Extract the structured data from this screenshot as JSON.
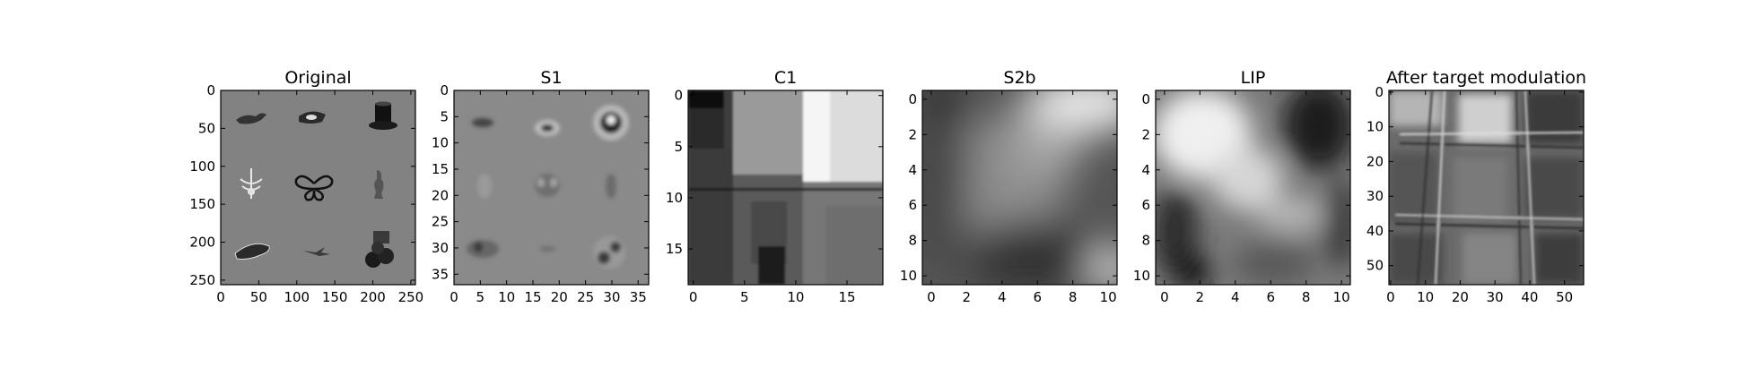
{
  "colors": {
    "background": "#ffffff",
    "axis": "#000000",
    "image_gray": "#808080"
  },
  "chart_data": [
    {
      "type": "heatmap",
      "title": "Original",
      "colormap": "gray",
      "extent": [
        0,
        256,
        256,
        0
      ],
      "xticks": [
        0,
        50,
        100,
        150,
        200,
        250
      ],
      "yticks": [
        0,
        50,
        100,
        150,
        200,
        250
      ],
      "content": "3x3 grid of grayscale object images on gray background"
    },
    {
      "type": "heatmap",
      "title": "S1",
      "colormap": "gray",
      "extent": [
        0,
        37,
        37,
        0
      ],
      "xticks": [
        0,
        5,
        10,
        15,
        20,
        25,
        30,
        35
      ],
      "yticks": [
        0,
        5,
        10,
        15,
        20,
        25,
        30,
        35
      ]
    },
    {
      "type": "heatmap",
      "title": "C1",
      "colormap": "gray",
      "extent": [
        -0.5,
        18.5,
        18.5,
        -0.5
      ],
      "xticks": [
        0,
        5,
        10,
        15
      ],
      "yticks": [
        0,
        5,
        10,
        15
      ]
    },
    {
      "type": "heatmap",
      "title": "S2b",
      "colormap": "gray",
      "extent": [
        -0.5,
        10.5,
        10.5,
        -0.5
      ],
      "xticks": [
        0,
        2,
        4,
        6,
        8,
        10
      ],
      "yticks": [
        0,
        2,
        4,
        6,
        8,
        10
      ]
    },
    {
      "type": "heatmap",
      "title": "LIP",
      "colormap": "gray",
      "extent": [
        -0.5,
        10.5,
        10.5,
        -0.5
      ],
      "xticks": [
        0,
        2,
        4,
        6,
        8,
        10
      ],
      "yticks": [
        0,
        2,
        4,
        6,
        8,
        10
      ]
    },
    {
      "type": "heatmap",
      "title": "After target modulation",
      "colormap": "gray",
      "extent": [
        -0.5,
        55.5,
        55.5,
        -0.5
      ],
      "xticks": [
        0,
        10,
        20,
        30,
        40,
        50
      ],
      "yticks": [
        0,
        10,
        20,
        30,
        40,
        50
      ]
    }
  ]
}
